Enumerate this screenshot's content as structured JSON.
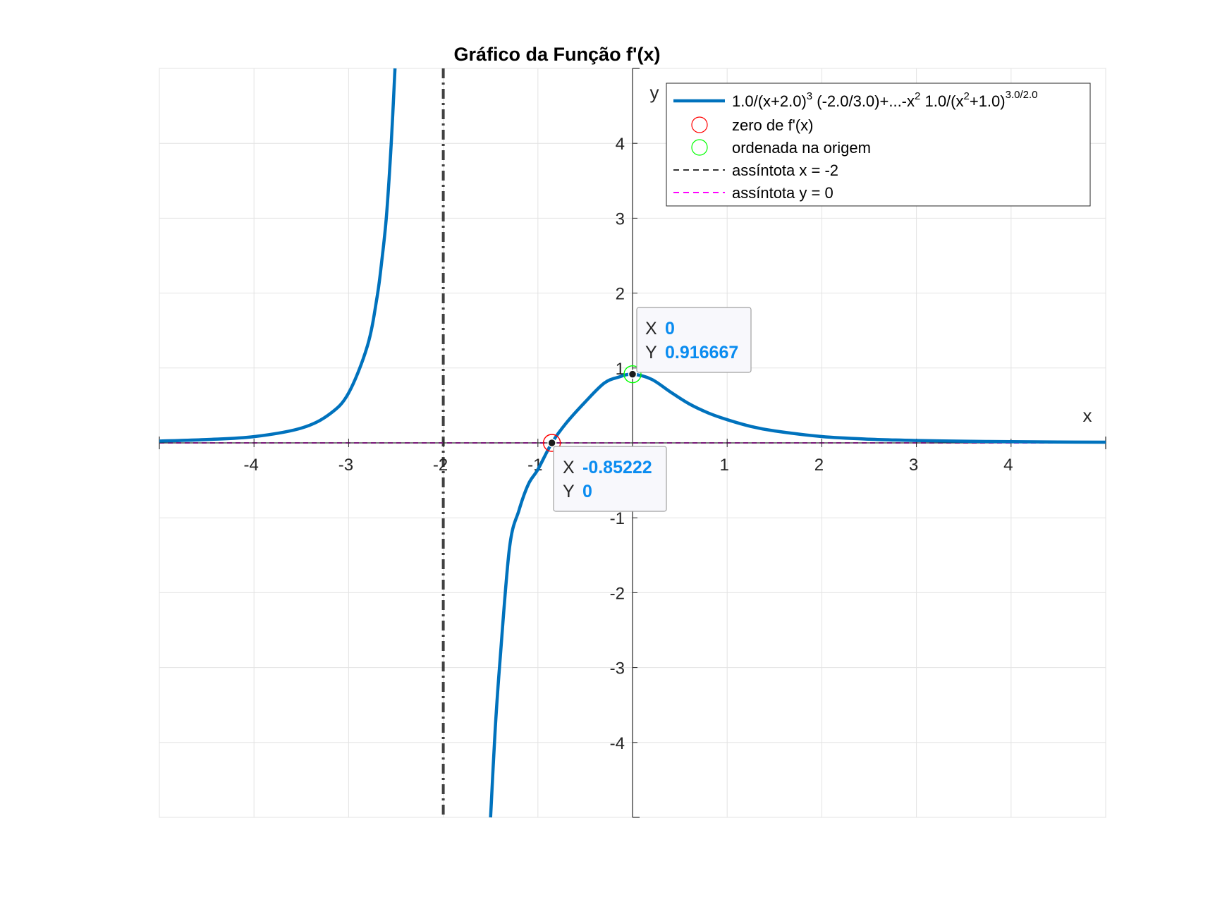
{
  "chart_data": {
    "type": "line",
    "title": "Gráfico da Função f'(x)",
    "xlabel": "x",
    "ylabel": "y",
    "xlim": [
      -5,
      5
    ],
    "ylim": [
      -5,
      5
    ],
    "xticks": [
      -4,
      -3,
      -2,
      -1,
      1,
      2,
      3,
      4
    ],
    "yticks": [
      -4,
      -3,
      -2,
      -1,
      1,
      2,
      3,
      4
    ],
    "grid": true,
    "legend_position": "top-right",
    "series": [
      {
        "name": "1.0/(x+2.0)^3 (-2.0/3.0)+...-x^2 1.0/(x^2+1.0)^3.0/2.0",
        "color": "#0072BD",
        "style": "solid",
        "x": [
          -5,
          -4.5,
          -4,
          -3.5,
          -3.2,
          -3,
          -2.8,
          -2.7,
          -2.65,
          -2.6,
          -2.55,
          -2.51,
          -1.5,
          -1.45,
          -1.4,
          -1.3,
          -1.2,
          -1.1,
          -1,
          -0.85222,
          -0.7,
          -0.5,
          -0.3,
          -0.15,
          0,
          0.2,
          0.4,
          0.6,
          0.8,
          1,
          1.25,
          1.5,
          2,
          2.5,
          3,
          3.5,
          4,
          4.5,
          5
        ],
        "y": [
          0.0247,
          0.0448,
          0.0832,
          0.1975,
          0.3858,
          0.6667,
          1.302,
          1.9437,
          2.4275,
          3.0349,
          3.9958,
          5.0,
          -5.0,
          -3.8,
          -2.9,
          -1.4,
          -0.9,
          -0.55,
          -0.354,
          0,
          0.266,
          0.547,
          0.797,
          0.877,
          0.916667,
          0.85,
          0.68,
          0.52,
          0.4,
          0.31,
          0.22,
          0.16,
          0.085,
          0.05,
          0.032,
          0.022,
          0.016,
          0.012,
          0.009
        ]
      },
      {
        "name": "zero de f'(x)",
        "marker": "circle",
        "color": "#ff0000",
        "x": [
          -0.85222
        ],
        "y": [
          0
        ]
      },
      {
        "name": "ordenada na origem",
        "marker": "circle",
        "color": "#00ff00",
        "x": [
          0
        ],
        "y": [
          0.916667
        ]
      },
      {
        "name": "assíntota x = -2",
        "style": "dashed",
        "color": "#333333",
        "x": [
          -2,
          -2
        ],
        "y": [
          -5,
          5
        ]
      },
      {
        "name": "assíntota y = 0",
        "style": "dashed",
        "color": "#ff00ff",
        "x": [
          -5,
          5
        ],
        "y": [
          0,
          0
        ]
      }
    ],
    "legend": {
      "entry1_main": "1.0/(x+2.0)",
      "entry1_sup1": "3",
      "entry1_mid": " (-2.0/3.0)+...-x",
      "entry1_sup2": "2",
      "entry1_tail": " 1.0/(x",
      "entry1_sup3": "2",
      "entry1_tail2": "+1.0)",
      "entry1_sup4": "3.0/2.0",
      "entry2": "zero de f'(x)",
      "entry3": "ordenada na origem",
      "entry4": "assíntota x = -2",
      "entry5": "assíntota y = 0"
    },
    "datatips": [
      {
        "x_key": "X",
        "x_value": "-0.85222",
        "y_key": "Y",
        "y_value": "0",
        "px": -0.85222,
        "py": 0
      },
      {
        "x_key": "X",
        "x_value": "0",
        "y_key": "Y",
        "y_value": "0.916667",
        "px": 0,
        "py": 0.916667
      }
    ]
  }
}
